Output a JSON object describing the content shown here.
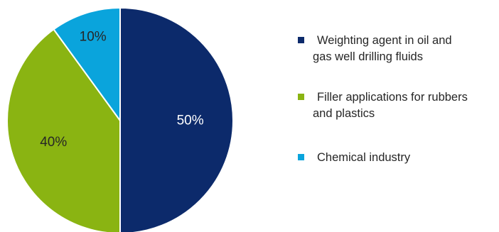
{
  "chart_data": {
    "type": "pie",
    "title": "",
    "start_angle_deg": 0,
    "direction": "clockwise",
    "legend_position": "right",
    "slices": [
      {
        "label_lines": [
          "Weighting agent in oil and",
          "gas well drilling fluids"
        ],
        "value": 50,
        "value_label": "50%",
        "color": "#0c2a6b",
        "label_color": "#ffffff"
      },
      {
        "label_lines": [
          "Filler applications for rubbers",
          "and plastics"
        ],
        "value": 40,
        "value_label": "40%",
        "color": "#8ab412",
        "label_color": "#262626"
      },
      {
        "label_lines": [
          "Chemical industry"
        ],
        "value": 10,
        "value_label": "10%",
        "color": "#0aa4dc",
        "label_color": "#262626"
      }
    ]
  }
}
